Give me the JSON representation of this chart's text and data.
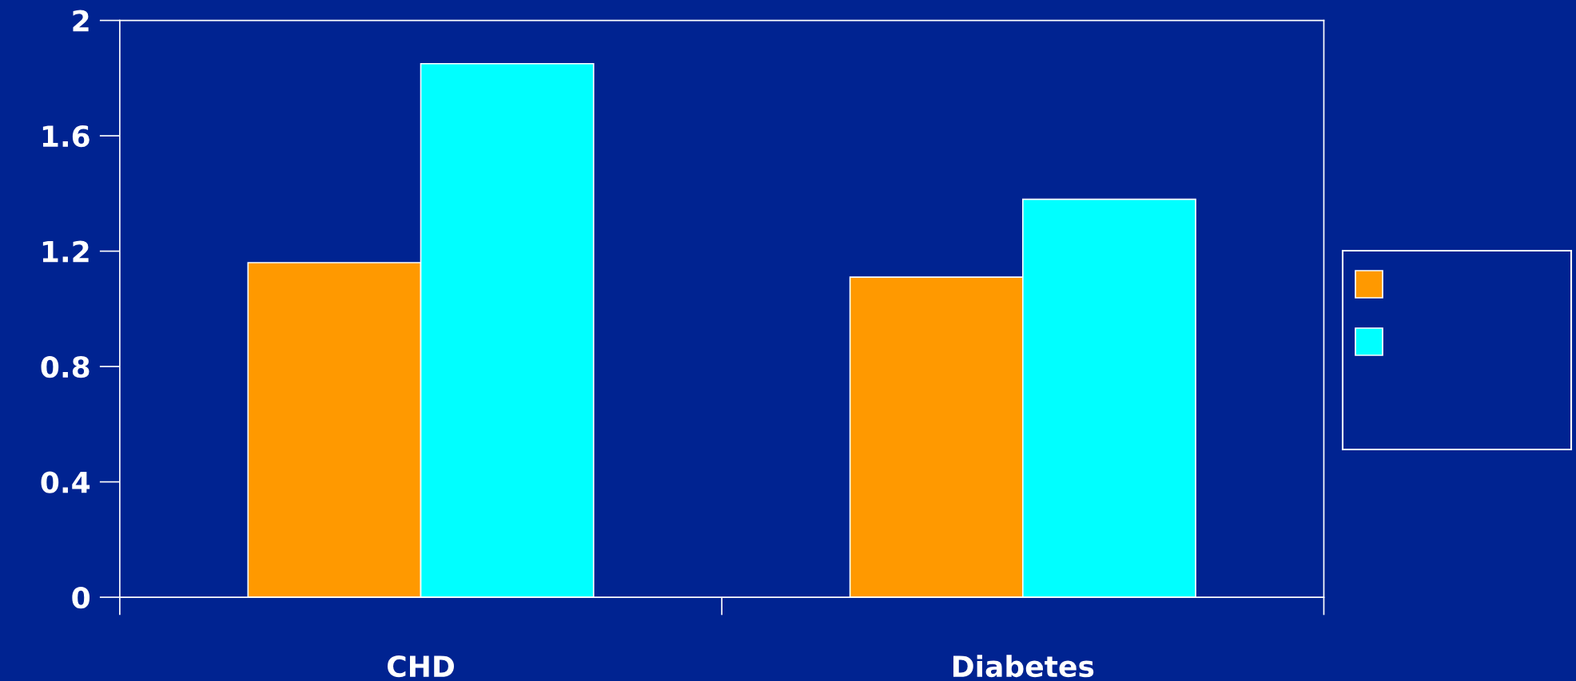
{
  "chart_data": {
    "type": "bar",
    "categories": [
      "CHD",
      "Diabetes"
    ],
    "series": [
      {
        "color": "#ff9900",
        "values": [
          1.16,
          1.11
        ]
      },
      {
        "color": "#00ffff",
        "values": [
          1.85,
          1.38
        ]
      }
    ],
    "ylim": [
      0,
      2
    ],
    "yticks": [
      0,
      0.4,
      0.8,
      1.2,
      1.6,
      2
    ],
    "grid": false
  }
}
